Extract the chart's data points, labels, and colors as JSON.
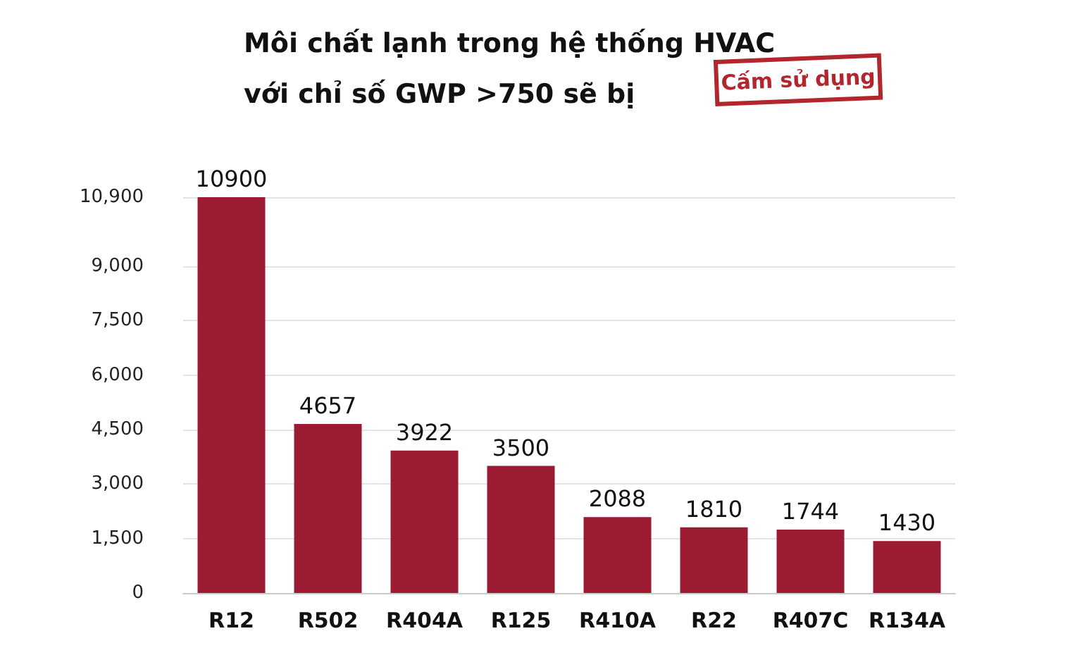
{
  "chart_data": {
    "type": "bar",
    "title": "Môi chất lạnh trong hệ thống HVAC\nvới chỉ số GWP >750 sẽ bị",
    "annotations": [
      "Cấm sử dụng"
    ],
    "categories": [
      "R12",
      "R502",
      "R404A",
      "R125",
      "R410A",
      "R22",
      "R407C",
      "R134A"
    ],
    "values": [
      10900,
      4657,
      3922,
      3500,
      2088,
      1810,
      1744,
      1430
    ],
    "color": "#9b1b33",
    "data_labels": true,
    "ylim": [
      0,
      10900
    ],
    "yticks": [
      {
        "value": 0,
        "label": "0"
      },
      {
        "value": 1500,
        "label": "1,500"
      },
      {
        "value": 3000,
        "label": "3,000"
      },
      {
        "value": 4500,
        "label": "4,500"
      },
      {
        "value": 6000,
        "label": "6,000"
      },
      {
        "value": 7500,
        "label": "7,500"
      },
      {
        "value": 9000,
        "label": "9,000"
      },
      {
        "value": 10900,
        "label": "10,900"
      }
    ],
    "grid": "y"
  }
}
